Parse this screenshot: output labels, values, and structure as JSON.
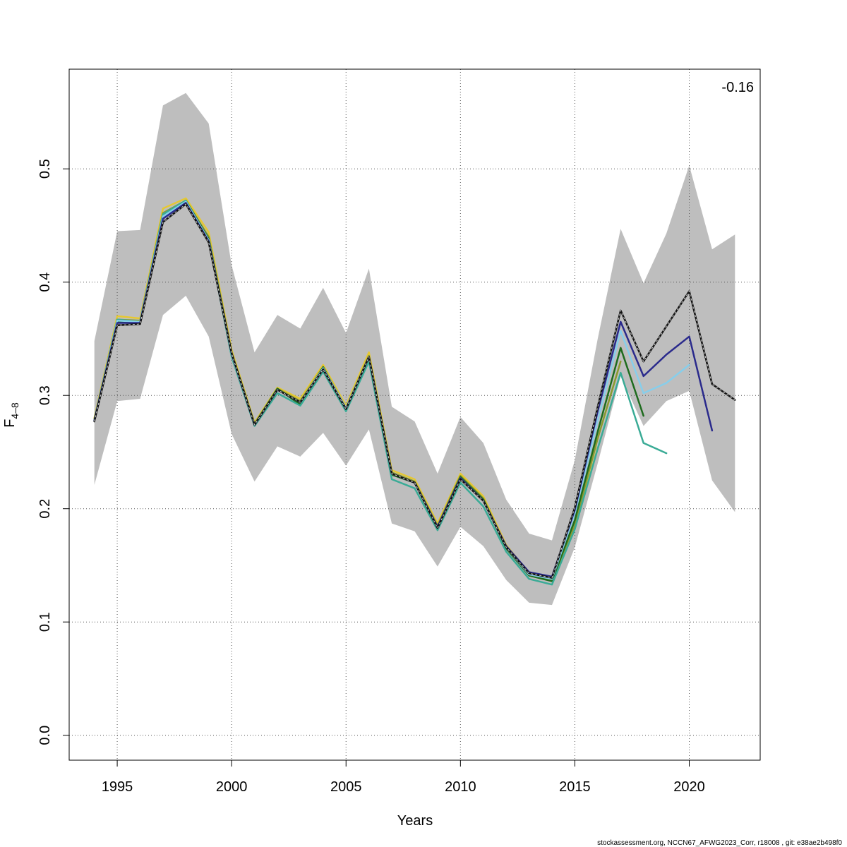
{
  "chart_data": {
    "type": "line",
    "xlabel": "Years",
    "ylabel_main": "F",
    "ylabel_sub": "4–8",
    "xlim": [
      1992.9,
      2023.1
    ],
    "ylim": [
      -0.022,
      0.588
    ],
    "x_ticks": [
      1995,
      2000,
      2005,
      2010,
      2015,
      2020
    ],
    "y_ticks": [
      0.0,
      0.1,
      0.2,
      0.3,
      0.4,
      0.5
    ],
    "y_tick_labels": [
      "0.0",
      "0.1",
      "0.2",
      "0.3",
      "0.4",
      "0.5"
    ],
    "grid": true,
    "annotation": "-0.16",
    "footer": "stockassessment.org, NCCN67_AFWG2023_Corr, r18008 , git: e38ae2b498f0",
    "confidence_band": {
      "color": "#bebebe",
      "x": [
        1994,
        1995,
        1996,
        1997,
        1998,
        1999,
        2000,
        2001,
        2002,
        2003,
        2004,
        2005,
        2006,
        2007,
        2008,
        2009,
        2010,
        2011,
        2012,
        2013,
        2014,
        2015,
        2016,
        2017,
        2018,
        2019,
        2020,
        2021,
        2022
      ],
      "lower": [
        0.221,
        0.295,
        0.297,
        0.371,
        0.388,
        0.352,
        0.266,
        0.224,
        0.255,
        0.246,
        0.267,
        0.238,
        0.27,
        0.187,
        0.18,
        0.149,
        0.184,
        0.167,
        0.137,
        0.117,
        0.115,
        0.166,
        0.24,
        0.317,
        0.273,
        0.295,
        0.304,
        0.225,
        0.197
      ],
      "upper": [
        0.348,
        0.445,
        0.446,
        0.556,
        0.567,
        0.54,
        0.415,
        0.338,
        0.371,
        0.359,
        0.395,
        0.355,
        0.412,
        0.29,
        0.277,
        0.231,
        0.281,
        0.258,
        0.208,
        0.178,
        0.172,
        0.243,
        0.35,
        0.447,
        0.399,
        0.443,
        0.503,
        0.429,
        0.442
      ]
    },
    "series": [
      {
        "color": "#111111",
        "dashed": true,
        "x": [
          1994,
          1995,
          1996,
          1997,
          1998,
          1999,
          2000,
          2001,
          2002,
          2003,
          2004,
          2005,
          2006,
          2007,
          2008,
          2009,
          2010,
          2011,
          2012,
          2013,
          2014,
          2015,
          2016,
          2017,
          2018,
          2019,
          2020,
          2021,
          2022
        ],
        "values": [
          0.277,
          0.362,
          0.363,
          0.453,
          0.469,
          0.435,
          0.337,
          0.274,
          0.305,
          0.294,
          0.323,
          0.288,
          0.334,
          0.231,
          0.223,
          0.183,
          0.226,
          0.207,
          0.166,
          0.143,
          0.139,
          0.201,
          0.29,
          0.375,
          0.33,
          0.361,
          0.392,
          0.31,
          0.296
        ]
      },
      {
        "color": "#2a2a8c",
        "dashed": false,
        "x": [
          1994,
          1995,
          1996,
          1997,
          1998,
          1999,
          2000,
          2001,
          2002,
          2003,
          2004,
          2005,
          2006,
          2007,
          2008,
          2009,
          2010,
          2011,
          2012,
          2013,
          2014,
          2015,
          2016,
          2017,
          2018,
          2019,
          2020,
          2021
        ],
        "values": [
          0.278,
          0.364,
          0.364,
          0.456,
          0.47,
          0.436,
          0.337,
          0.274,
          0.305,
          0.294,
          0.323,
          0.288,
          0.334,
          0.231,
          0.223,
          0.184,
          0.227,
          0.207,
          0.167,
          0.144,
          0.14,
          0.199,
          0.286,
          0.365,
          0.317,
          0.336,
          0.352,
          0.269
        ]
      },
      {
        "color": "#87ceeb",
        "dashed": false,
        "x": [
          1994,
          1995,
          1996,
          1997,
          1998,
          1999,
          2000,
          2001,
          2002,
          2003,
          2004,
          2005,
          2006,
          2007,
          2008,
          2009,
          2010,
          2011,
          2012,
          2013,
          2014,
          2015,
          2016,
          2017,
          2018,
          2019,
          2020
        ],
        "values": [
          0.278,
          0.366,
          0.365,
          0.458,
          0.471,
          0.437,
          0.336,
          0.274,
          0.305,
          0.294,
          0.324,
          0.289,
          0.334,
          0.231,
          0.223,
          0.184,
          0.227,
          0.207,
          0.166,
          0.142,
          0.138,
          0.196,
          0.278,
          0.357,
          0.302,
          0.311,
          0.327
        ]
      },
      {
        "color": "#3aab96",
        "dashed": false,
        "x": [
          1994,
          1995,
          1996,
          1997,
          1998,
          1999,
          2000,
          2001,
          2002,
          2003,
          2004,
          2005,
          2006,
          2007,
          2008,
          2009,
          2010,
          2011,
          2012,
          2013,
          2014,
          2015,
          2016,
          2017,
          2018,
          2019
        ],
        "values": [
          0.278,
          0.367,
          0.365,
          0.46,
          0.472,
          0.437,
          0.334,
          0.273,
          0.302,
          0.291,
          0.321,
          0.286,
          0.33,
          0.226,
          0.218,
          0.181,
          0.223,
          0.202,
          0.162,
          0.138,
          0.133,
          0.182,
          0.253,
          0.32,
          0.258,
          0.249
        ]
      },
      {
        "color": "#1e6b1e",
        "dashed": false,
        "x": [
          1994,
          1995,
          1996,
          1997,
          1998,
          1999,
          2000,
          2001,
          2002,
          2003,
          2004,
          2005,
          2006,
          2007,
          2008,
          2009,
          2010,
          2011,
          2012,
          2013,
          2014,
          2015,
          2016,
          2017,
          2018
        ],
        "values": [
          0.278,
          0.365,
          0.365,
          0.459,
          0.472,
          0.438,
          0.336,
          0.274,
          0.306,
          0.292,
          0.325,
          0.287,
          0.334,
          0.23,
          0.223,
          0.184,
          0.228,
          0.208,
          0.165,
          0.141,
          0.136,
          0.19,
          0.268,
          0.342,
          0.282
        ]
      },
      {
        "color": "#8a9a2e",
        "dashed": false,
        "x": [
          1994,
          1995,
          1996,
          1997,
          1998,
          1999,
          2000,
          2001,
          2002,
          2003,
          2004,
          2005,
          2006,
          2007,
          2008,
          2009,
          2010,
          2011,
          2012,
          2013,
          2014,
          2015,
          2016,
          2017
        ],
        "values": [
          0.279,
          0.367,
          0.366,
          0.461,
          0.472,
          0.44,
          0.338,
          0.275,
          0.306,
          0.295,
          0.325,
          0.289,
          0.335,
          0.232,
          0.224,
          0.185,
          0.229,
          0.209,
          0.166,
          0.142,
          0.137,
          0.186,
          0.262,
          0.33
        ]
      },
      {
        "color": "#e6c832",
        "dashed": false,
        "x": [
          1994,
          1995,
          1996,
          1997,
          1998,
          1999,
          2000,
          2001,
          2002,
          2003,
          2004,
          2005,
          2006,
          2007,
          2008,
          2009,
          2010,
          2011,
          2012,
          2013,
          2014,
          2015,
          2016
        ],
        "values": [
          0.28,
          0.37,
          0.368,
          0.465,
          0.474,
          0.444,
          0.34,
          0.276,
          0.307,
          0.297,
          0.327,
          0.291,
          0.338,
          0.234,
          0.226,
          0.187,
          0.231,
          0.211,
          0.168,
          0.143,
          0.138,
          0.183,
          0.254
        ]
      }
    ]
  }
}
